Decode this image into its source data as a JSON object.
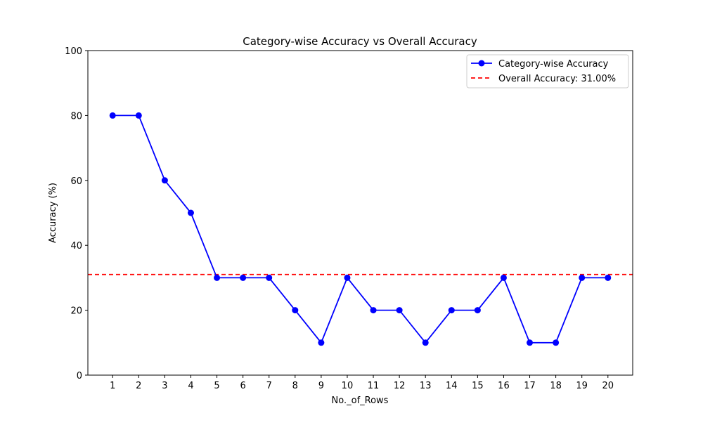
{
  "chart_data": {
    "type": "line",
    "title": "Category-wise Accuracy vs Overall Accuracy",
    "xlabel": "No._of_Rows",
    "ylabel": "Accuracy (%)",
    "x": [
      1,
      2,
      3,
      4,
      5,
      6,
      7,
      8,
      9,
      10,
      11,
      12,
      13,
      14,
      15,
      16,
      17,
      18,
      19,
      20
    ],
    "xlim": [
      0.05,
      20.95
    ],
    "ylim": [
      0,
      100
    ],
    "yticks": [
      0,
      20,
      40,
      60,
      80,
      100
    ],
    "series": [
      {
        "name": "Category-wise Accuracy",
        "values": [
          80,
          80,
          60,
          50,
          30,
          30,
          30,
          20,
          10,
          30,
          20,
          20,
          10,
          20,
          20,
          30,
          10,
          10,
          30,
          30
        ],
        "color": "#0000ff",
        "marker": "circle"
      }
    ],
    "reference_line": {
      "name": "Overall Accuracy: 31.00%",
      "value": 31,
      "color": "#ff0000",
      "style": "dashed"
    },
    "grid": false,
    "legend_position": "top-right"
  }
}
